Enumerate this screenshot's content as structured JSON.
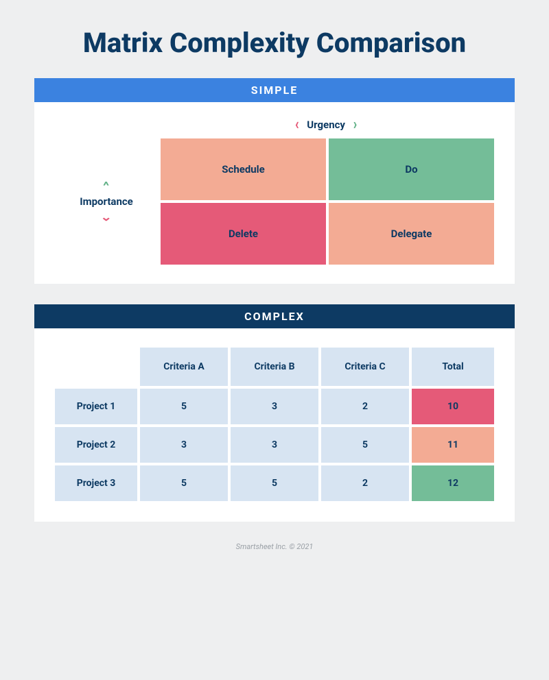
{
  "title": "Matrix Complexity Comparison",
  "footer": "Smartsheet Inc. © 2021",
  "colors": {
    "page_bg": "#eeeff0",
    "panel_bg": "#ffffff",
    "title_text": "#0d3a63",
    "simple_header_bg": "#3b82e0",
    "complex_header_bg": "#0d3a63",
    "header_text": "#ffffff",
    "cell_light_blue": "#d7e4f2",
    "cell_peach": "#f3ab94",
    "cell_green": "#74bd98",
    "cell_pink": "#e55a78",
    "accent_green": "#63b288",
    "accent_pink": "#e55a78",
    "label_text": "#0d3a63"
  },
  "simple": {
    "header": "SIMPLE",
    "x_axis_label": "Urgency",
    "y_axis_label": "Importance",
    "quadrants": [
      {
        "label": "Schedule",
        "bg": "#f3ab94"
      },
      {
        "label": "Do",
        "bg": "#74bd98"
      },
      {
        "label": "Delete",
        "bg": "#e55a78"
      },
      {
        "label": "Delegate",
        "bg": "#f3ab94"
      }
    ]
  },
  "complex": {
    "header": "COMPLEX",
    "columns": [
      "Criteria A",
      "Criteria B",
      "Criteria C",
      "Total"
    ],
    "header_bg": "#d7e4f2",
    "row_label_bg": "#d7e4f2",
    "cell_bg": "#d7e4f2",
    "rows": [
      {
        "label": "Project 1",
        "values": [
          "5",
          "3",
          "2"
        ],
        "total": "10",
        "total_bg": "#e55a78"
      },
      {
        "label": "Project 2",
        "values": [
          "3",
          "3",
          "5"
        ],
        "total": "11",
        "total_bg": "#f3ab94"
      },
      {
        "label": "Project 3",
        "values": [
          "5",
          "5",
          "2"
        ],
        "total": "12",
        "total_bg": "#74bd98"
      }
    ]
  }
}
